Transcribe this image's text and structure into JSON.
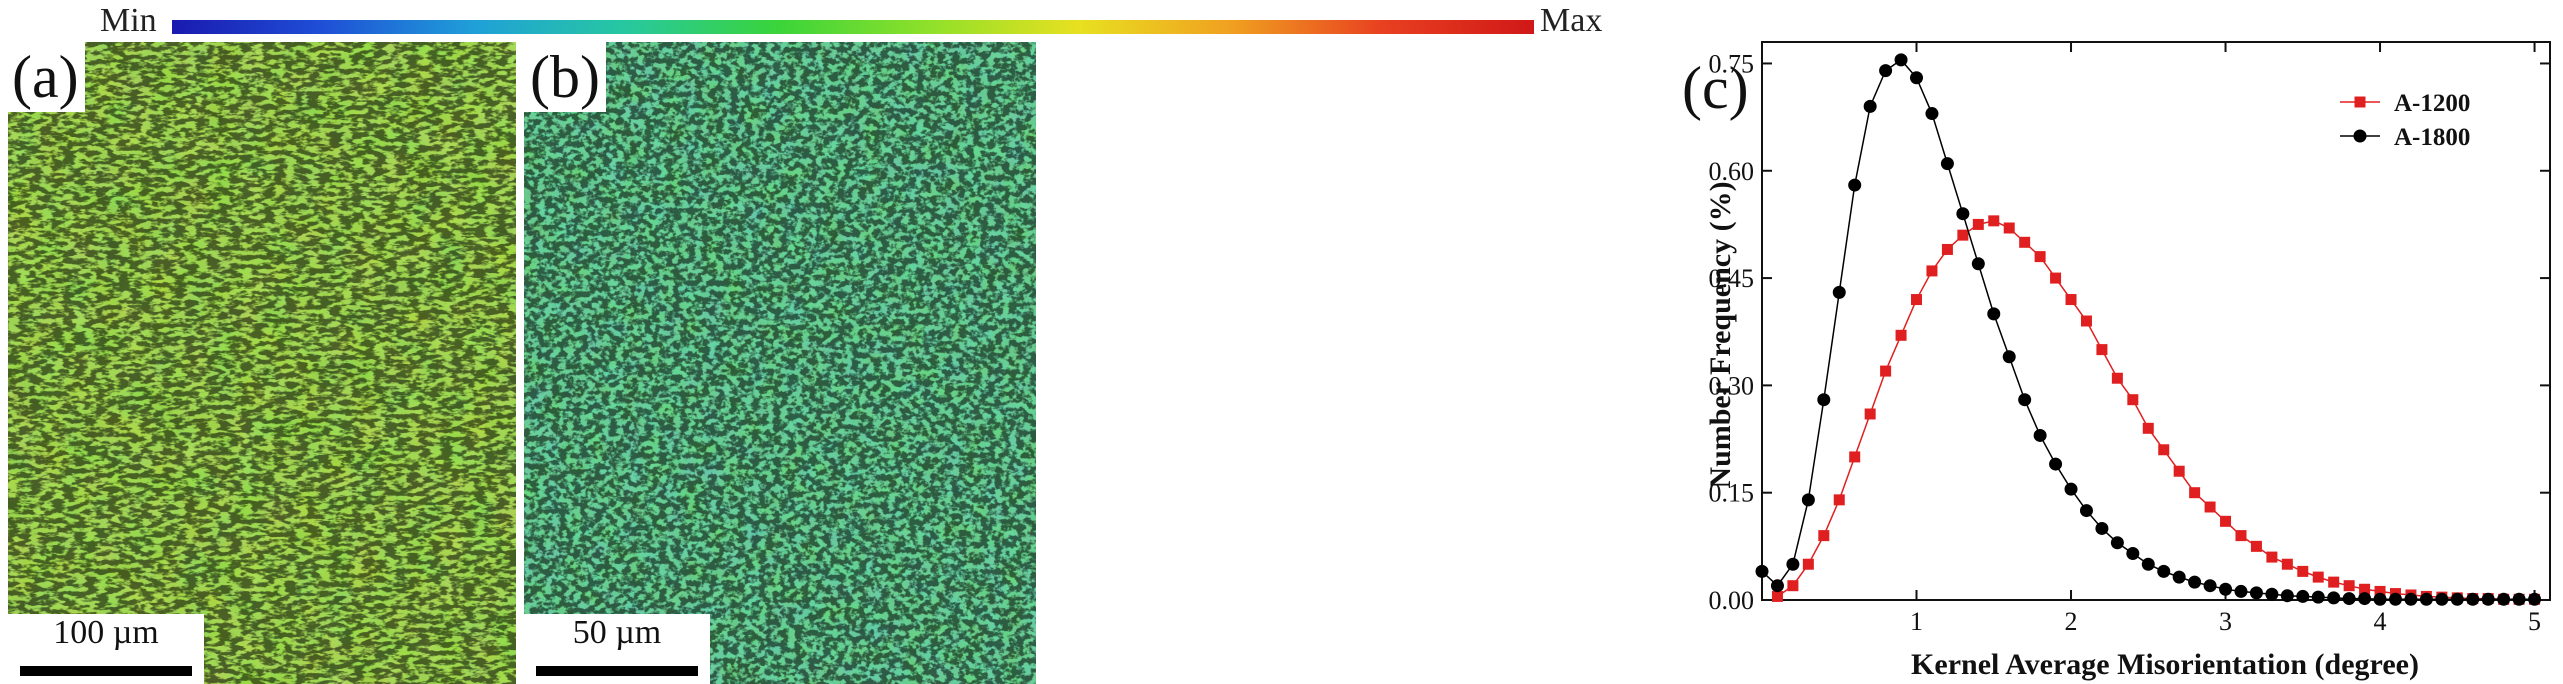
{
  "colorbar": {
    "min_label": "Min",
    "max_label": "Max"
  },
  "panels": [
    {
      "letter": "(a)",
      "scale_label": "100 µm"
    },
    {
      "letter": "(b)",
      "scale_label": "50 µm"
    }
  ],
  "chart_panel_letter": "(c)",
  "chart_data": {
    "type": "line",
    "xlabel": "Kernel Average Misorientation (degree)",
    "ylabel": "Number Frequency (%)",
    "xlim": [
      0,
      5.1
    ],
    "ylim": [
      0,
      0.78
    ],
    "xticks": [
      "1",
      "2",
      "3",
      "4",
      "5"
    ],
    "yticks": [
      "0.00",
      "0.15",
      "0.30",
      "0.45",
      "0.60",
      "0.75"
    ],
    "legend_position": "top-right",
    "grid": false,
    "series": [
      {
        "name": "A-1200",
        "marker": "square",
        "color": "#e02020",
        "x": [
          0.1,
          0.2,
          0.3,
          0.4,
          0.5,
          0.6,
          0.7,
          0.8,
          0.9,
          1.0,
          1.1,
          1.2,
          1.3,
          1.4,
          1.5,
          1.6,
          1.7,
          1.8,
          1.9,
          2.0,
          2.1,
          2.2,
          2.3,
          2.4,
          2.5,
          2.6,
          2.7,
          2.8,
          2.9,
          3.0,
          3.1,
          3.2,
          3.3,
          3.4,
          3.5,
          3.6,
          3.7,
          3.8,
          3.9,
          4.0,
          4.1,
          4.2,
          4.3,
          4.4,
          4.5,
          4.6,
          4.7,
          4.8,
          4.9,
          5.0
        ],
        "y": [
          0.005,
          0.02,
          0.05,
          0.09,
          0.14,
          0.2,
          0.26,
          0.32,
          0.37,
          0.42,
          0.46,
          0.49,
          0.51,
          0.525,
          0.53,
          0.52,
          0.5,
          0.48,
          0.45,
          0.42,
          0.39,
          0.35,
          0.31,
          0.28,
          0.24,
          0.21,
          0.18,
          0.15,
          0.13,
          0.11,
          0.09,
          0.075,
          0.06,
          0.05,
          0.04,
          0.032,
          0.025,
          0.02,
          0.015,
          0.012,
          0.009,
          0.007,
          0.005,
          0.004,
          0.003,
          0.002,
          0.002,
          0.001,
          0.001,
          0.001
        ]
      },
      {
        "name": "A-1800",
        "marker": "circle",
        "color": "#000000",
        "x": [
          0.0,
          0.1,
          0.2,
          0.3,
          0.4,
          0.5,
          0.6,
          0.7,
          0.8,
          0.9,
          1.0,
          1.1,
          1.2,
          1.3,
          1.4,
          1.5,
          1.6,
          1.7,
          1.8,
          1.9,
          2.0,
          2.1,
          2.2,
          2.3,
          2.4,
          2.5,
          2.6,
          2.7,
          2.8,
          2.9,
          3.0,
          3.1,
          3.2,
          3.3,
          3.4,
          3.5,
          3.6,
          3.7,
          3.8,
          3.9,
          4.0,
          4.1,
          4.2,
          4.3,
          4.4,
          4.5,
          4.6,
          4.7,
          4.8,
          4.9,
          5.0
        ],
        "y": [
          0.04,
          0.02,
          0.05,
          0.14,
          0.28,
          0.43,
          0.58,
          0.69,
          0.74,
          0.755,
          0.73,
          0.68,
          0.61,
          0.54,
          0.47,
          0.4,
          0.34,
          0.28,
          0.23,
          0.19,
          0.155,
          0.125,
          0.1,
          0.08,
          0.065,
          0.05,
          0.04,
          0.032,
          0.025,
          0.02,
          0.015,
          0.012,
          0.01,
          0.008,
          0.006,
          0.005,
          0.004,
          0.003,
          0.002,
          0.002,
          0.001,
          0.001,
          0.001,
          0.001,
          0.001,
          0.001,
          0.001,
          0.001,
          0.001,
          0.001,
          0.001
        ]
      }
    ]
  }
}
